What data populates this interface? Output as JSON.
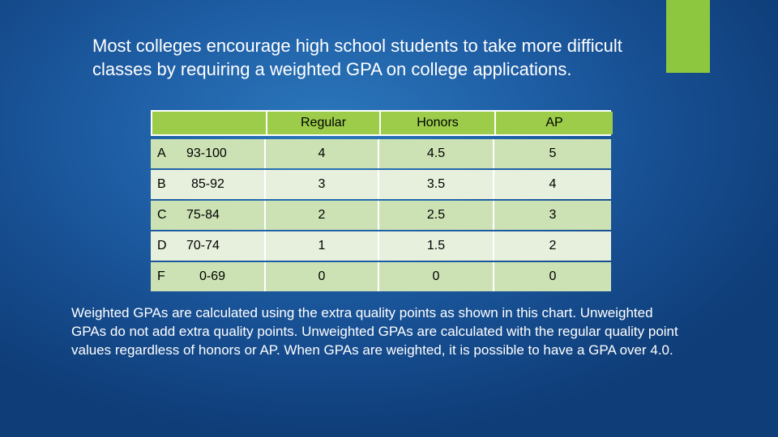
{
  "intro_text": "Most colleges encourage high school students to take more difficult classes by requiring a weighted GPA on college applications.",
  "table": {
    "headers": [
      "",
      "Regular",
      "Honors",
      "AP"
    ],
    "rows": [
      {
        "letter": "A",
        "range": "93-100",
        "regular": "4",
        "honors": "4.5",
        "ap": "5"
      },
      {
        "letter": "B",
        "range": "85-92",
        "regular": "3",
        "honors": "3.5",
        "ap": "4"
      },
      {
        "letter": "C",
        "range": "75-84",
        "regular": "2",
        "honors": "2.5",
        "ap": "3"
      },
      {
        "letter": "D",
        "range": "70-74",
        "regular": "1",
        "honors": "1.5",
        "ap": "2"
      },
      {
        "letter": "F",
        "range": "0-69",
        "regular": "0",
        "honors": "0",
        "ap": "0"
      }
    ]
  },
  "closing_text": "Weighted GPAs are calculated using the extra quality points as shown in this chart. Unweighted GPAs do not add extra quality points. Unweighted GPAs are calculated with the regular quality point values regardless of honors or AP. When GPAs are weighted, it is possible to have a GPA over 4.0.",
  "colors": {
    "accent": "#8dc63f",
    "header_fill": "#9ccc4a",
    "row_dark": "#cde2b4",
    "row_light": "#e7f0dc",
    "background": "#1f5fa6"
  }
}
